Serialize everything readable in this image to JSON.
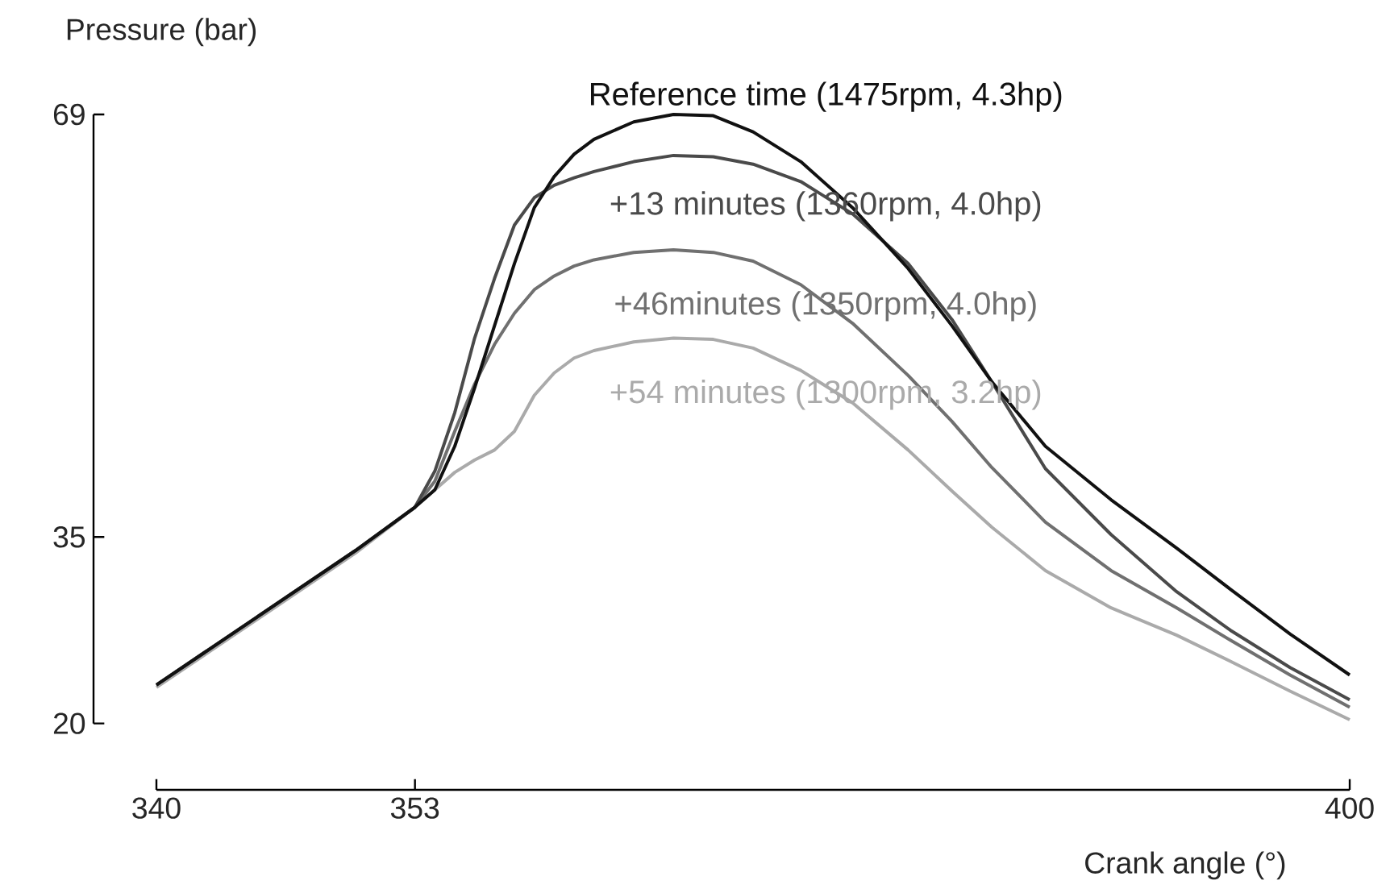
{
  "chart_data": {
    "type": "line",
    "xlabel": "Crank angle (°)",
    "ylabel": "Pressure (bar)",
    "xlim": [
      340,
      400
    ],
    "ylim": [
      20,
      69
    ],
    "xticks": [
      340,
      353,
      400
    ],
    "yticks": [
      20,
      35,
      69
    ],
    "x": [
      340,
      345,
      350,
      353,
      354,
      355,
      356,
      357,
      358,
      359,
      360,
      361,
      362,
      364,
      366,
      368,
      370,
      372.4,
      375,
      377.8,
      380,
      382,
      384.7,
      388,
      391.3,
      394,
      397,
      400
    ],
    "series": [
      {
        "name": "Reference time (1475rpm, 4.3hp)",
        "color": "#111111",
        "values": [
          23.1,
          28.5,
          33.9,
          37.4,
          38.8,
          42.3,
          47,
          52,
          57,
          61.5,
          64,
          65.8,
          67,
          68.4,
          69,
          68.9,
          67.6,
          65.2,
          61.5,
          56.6,
          52,
          47.5,
          42.3,
          38,
          34.1,
          30.8,
          27.2,
          23.9
        ]
      },
      {
        "name": "+13 minutes (1360rpm, 4.0hp)",
        "color": "#4a4a4a",
        "values": [
          23.1,
          28.5,
          33.9,
          37.4,
          40.3,
          45,
          51,
          55.8,
          60.1,
          62.3,
          63.3,
          63.9,
          64.4,
          65.2,
          65.7,
          65.6,
          65,
          63.6,
          61,
          57,
          52.5,
          47.5,
          40.5,
          35.2,
          30.6,
          27.5,
          24.5,
          21.9
        ]
      },
      {
        "name": "+46minutes (1350rpm, 4.0hp)",
        "color": "#707070",
        "values": [
          23.1,
          28.5,
          33.9,
          37.4,
          39.5,
          43.5,
          47.3,
          50.5,
          53,
          54.9,
          56,
          56.8,
          57.3,
          57.9,
          58.1,
          57.9,
          57.2,
          55.3,
          52.2,
          48,
          44.3,
          40.6,
          36.2,
          32.3,
          29.3,
          26.7,
          23.9,
          21.3
        ]
      },
      {
        "name": "+54 minutes (1300rpm, 3.2hp)",
        "color": "#aaaaaa",
        "values": [
          22.9,
          28.3,
          33.7,
          37.4,
          38.8,
          40.2,
          41.2,
          42,
          43.5,
          46.4,
          48.2,
          49.4,
          50,
          50.7,
          51,
          50.9,
          50.2,
          48.4,
          45.8,
          42,
          38.7,
          35.8,
          32.3,
          29.3,
          27.1,
          25,
          22.6,
          20.3
        ]
      }
    ]
  }
}
